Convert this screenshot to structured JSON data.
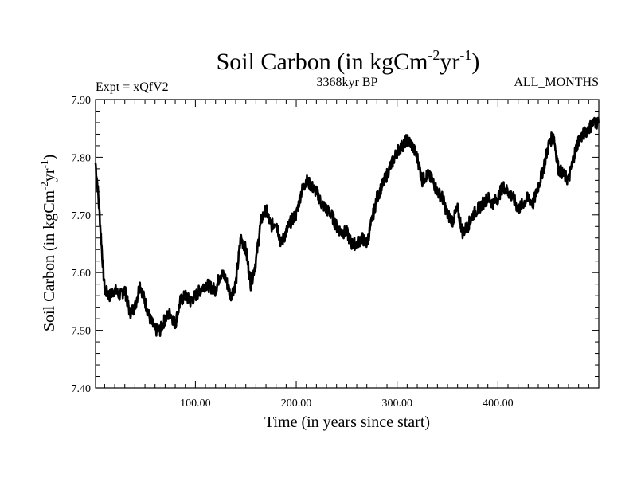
{
  "chart_data": {
    "type": "line",
    "title": "Soil Carbon (in kgCm",
    "title_sup1": "-2",
    "title_mid": "yr",
    "title_sup2": "-1",
    "title_end": ")",
    "expt_label": "Expt = xQfV2",
    "period_label": "3368kyr BP",
    "months_label": "ALL_MONTHS",
    "xlabel": "Time (in years since start)",
    "ylabel": "Soil Carbon (in kgCm",
    "ylabel_sup1": "-2",
    "ylabel_mid": "yr",
    "ylabel_sup2": "-1",
    "ylabel_end": ")",
    "xlim": [
      1,
      500
    ],
    "ylim": [
      7.4,
      7.9
    ],
    "x_ticks": [
      {
        "value": 100,
        "label": "100.00"
      },
      {
        "value": 200,
        "label": "200.00"
      },
      {
        "value": 300,
        "label": "300.00"
      },
      {
        "value": 400,
        "label": "400.00"
      }
    ],
    "y_ticks": [
      {
        "value": 7.4,
        "label": "7.40"
      },
      {
        "value": 7.5,
        "label": "7.50"
      },
      {
        "value": 7.6,
        "label": "7.60"
      },
      {
        "value": 7.7,
        "label": "7.70"
      },
      {
        "value": 7.8,
        "label": "7.80"
      },
      {
        "value": 7.9,
        "label": "7.90"
      }
    ],
    "series": [
      {
        "name": "Soil Carbon",
        "color": "#000000",
        "x": [
          1,
          3,
          5,
          8,
          10,
          15,
          20,
          25,
          30,
          35,
          40,
          45,
          50,
          55,
          60,
          65,
          70,
          75,
          80,
          85,
          90,
          95,
          100,
          110,
          120,
          125,
          130,
          135,
          140,
          145,
          150,
          155,
          160,
          165,
          170,
          175,
          180,
          185,
          190,
          195,
          200,
          205,
          210,
          215,
          220,
          225,
          230,
          235,
          240,
          245,
          250,
          255,
          260,
          265,
          270,
          275,
          280,
          285,
          290,
          295,
          300,
          305,
          310,
          315,
          320,
          325,
          330,
          335,
          340,
          345,
          350,
          355,
          360,
          365,
          370,
          375,
          380,
          385,
          390,
          395,
          400,
          405,
          410,
          415,
          420,
          425,
          430,
          435,
          440,
          445,
          450,
          455,
          460,
          465,
          470,
          475,
          480,
          485,
          490,
          495,
          500
        ],
        "values": [
          7.79,
          7.75,
          7.7,
          7.62,
          7.57,
          7.56,
          7.57,
          7.56,
          7.57,
          7.53,
          7.54,
          7.58,
          7.55,
          7.52,
          7.5,
          7.5,
          7.52,
          7.53,
          7.51,
          7.55,
          7.56,
          7.55,
          7.56,
          7.58,
          7.57,
          7.6,
          7.59,
          7.56,
          7.58,
          7.66,
          7.64,
          7.58,
          7.62,
          7.69,
          7.71,
          7.68,
          7.69,
          7.65,
          7.67,
          7.69,
          7.7,
          7.74,
          7.76,
          7.75,
          7.74,
          7.72,
          7.71,
          7.7,
          7.68,
          7.67,
          7.67,
          7.65,
          7.65,
          7.66,
          7.65,
          7.69,
          7.73,
          7.75,
          7.77,
          7.79,
          7.81,
          7.82,
          7.83,
          7.82,
          7.8,
          7.76,
          7.77,
          7.76,
          7.74,
          7.73,
          7.7,
          7.69,
          7.71,
          7.67,
          7.68,
          7.7,
          7.71,
          7.72,
          7.73,
          7.72,
          7.73,
          7.75,
          7.74,
          7.73,
          7.71,
          7.72,
          7.73,
          7.72,
          7.75,
          7.78,
          7.82,
          7.84,
          7.78,
          7.77,
          7.76,
          7.8,
          7.83,
          7.84,
          7.85,
          7.86,
          7.86
        ]
      }
    ]
  }
}
